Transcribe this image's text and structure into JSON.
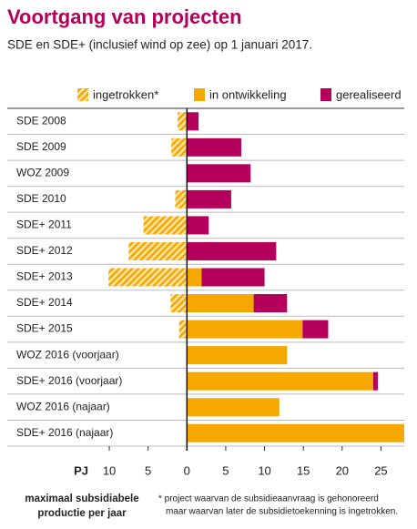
{
  "chart_data": {
    "type": "diverging-bar",
    "orientation": "horizontal",
    "title": "Voortgang van projecten",
    "subtitle": "SDE en SDE+ (inclusief wind op zee) op 1 januari 2017.",
    "axis_unit": "PJ",
    "axis_caption": [
      "maximaal subsidiabele",
      "productie per jaar"
    ],
    "footnote": [
      "* project waarvan de subsidieaanvraag is gehonoreerd",
      "maar waarvan later de subsidietoekenning is ingetrokken."
    ],
    "categories": [
      "SDE 2008",
      "SDE 2009",
      "WOZ 2009",
      "SDE 2010",
      "SDE+ 2011",
      "SDE+ 2012",
      "SDE+ 2013",
      "SDE+ 2014",
      "SDE+ 2015",
      "WOZ 2016 (voorjaar)",
      "SDE+ 2016 (voorjaar)",
      "WOZ 2016 (najaar)",
      "SDE+ 2016 (najaar)"
    ],
    "series": [
      {
        "name": "ingetrokken*",
        "color": "#f5a800",
        "hatch": true,
        "values": [
          -1.2,
          -2,
          null,
          -1.5,
          -5.6,
          -7.5,
          -10.1,
          -2.1,
          -1,
          null,
          null,
          null,
          null
        ]
      },
      {
        "name": "in ontwikkeling",
        "color": "#f5a800",
        "values": [
          null,
          null,
          null,
          null,
          null,
          null,
          1.9,
          8.6,
          14.9,
          12.9,
          24,
          11.9,
          28
        ]
      },
      {
        "name": "gerealiseerd",
        "color": "#b4005a",
        "values": [
          1.5,
          7,
          8.2,
          5.7,
          2.8,
          11.5,
          8.1,
          4.3,
          3.3,
          null,
          0.6,
          null,
          null
        ]
      }
    ],
    "xlim": [
      -12,
      28
    ],
    "xticks": [
      {
        "value": -10,
        "label": "10"
      },
      {
        "value": -5,
        "label": "5"
      },
      0,
      5,
      10,
      15,
      20,
      25
    ]
  }
}
